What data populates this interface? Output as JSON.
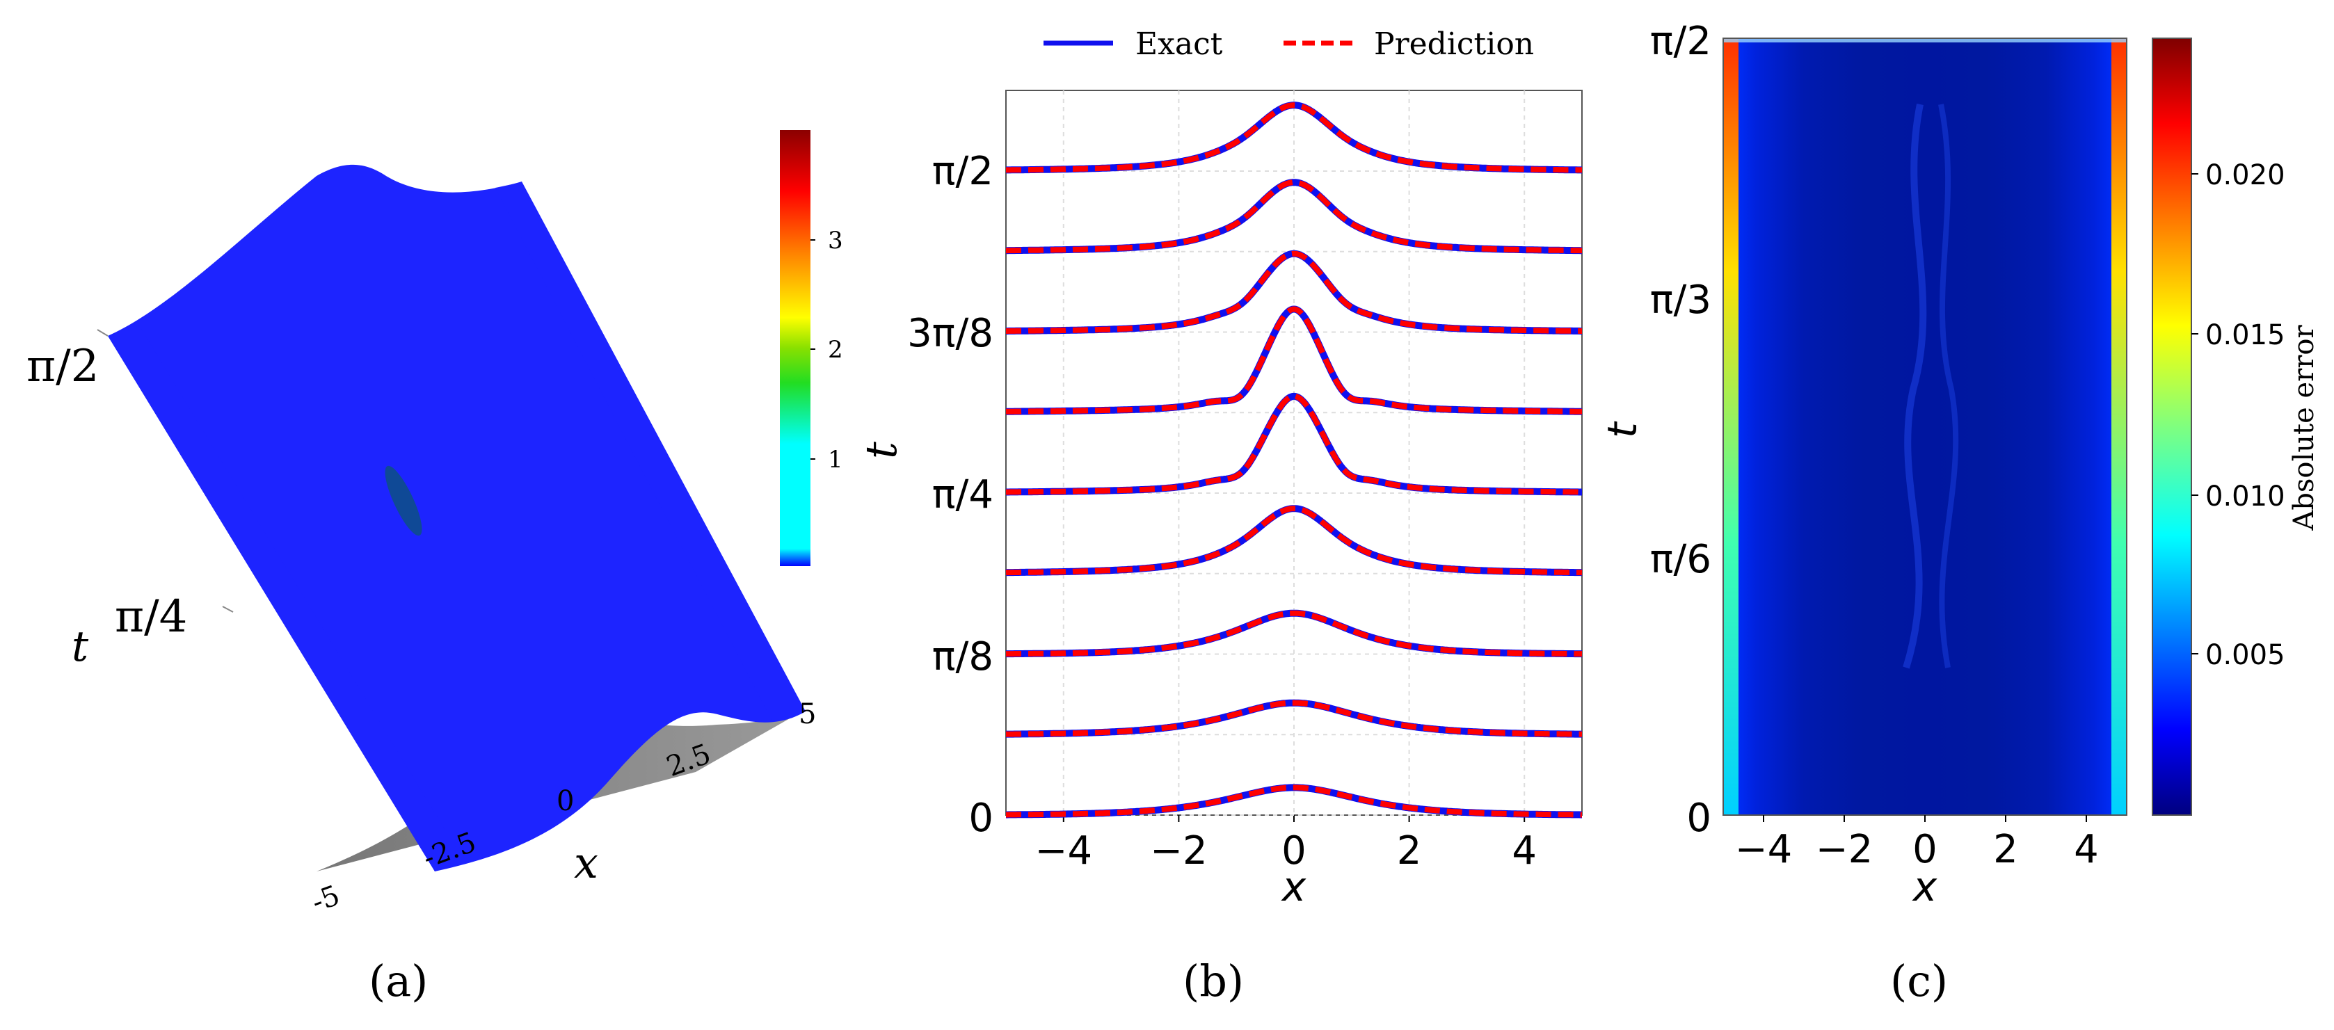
{
  "panels": {
    "a": {
      "label": "(a)"
    },
    "b": {
      "label": "(b)"
    },
    "c": {
      "label": "(c)"
    }
  },
  "chart_data": [
    {
      "type": "surface",
      "xlabel": "x",
      "ylabel": "t",
      "x_ticks": [
        "-5",
        "-2.5",
        "0",
        "2.5",
        "5"
      ],
      "t_ticks": [
        "π/4",
        "π/2"
      ],
      "colorbar": {
        "label": "t",
        "ticks": [
          "1",
          "2",
          "3"
        ],
        "range": [
          0.4,
          3.9
        ]
      },
      "surface_axes": {
        "x_range": [
          -5,
          5
        ],
        "t_range": [
          0,
          1.5708
        ]
      }
    },
    {
      "type": "line",
      "legend": [
        "Exact",
        "Prediction"
      ],
      "legend_position": "top",
      "xlabel": "x",
      "ylabel": "",
      "xlim": [
        -5,
        5
      ],
      "x_ticks": [
        "−4",
        "−2",
        "0",
        "2",
        "4"
      ],
      "y_ticks": [
        "0",
        "π/8",
        "π/4",
        "3π/8",
        "π/2"
      ],
      "grid": true,
      "series_style": {
        "Exact": {
          "color": "#1010ee",
          "dash": "solid"
        },
        "Prediction": {
          "color": "#ff0000",
          "dash": "dashed"
        }
      },
      "n_snapshots": 9,
      "snapshot_peaks": [
        0.33,
        0.38,
        0.49,
        0.72,
        1.1,
        1.18,
        0.88,
        0.77,
        0.73
      ]
    },
    {
      "type": "heatmap",
      "xlabel": "x",
      "ylabel": "t",
      "x_ticks": [
        "−4",
        "−2",
        "0",
        "2",
        "4"
      ],
      "y_ticks": [
        "0",
        "π/6",
        "π/3",
        "π/2"
      ],
      "xlim": [
        -5,
        5
      ],
      "ylim": [
        0,
        1.5708
      ],
      "colorbar": {
        "label": "Absolute error",
        "ticks": [
          "0.005",
          "0.010",
          "0.015",
          "0.020"
        ],
        "range": [
          0,
          0.0245
        ]
      },
      "max_error_location": "edges x = ±5"
    }
  ],
  "colors": {
    "exact": "#1010ee",
    "prediction": "#ff0000"
  }
}
